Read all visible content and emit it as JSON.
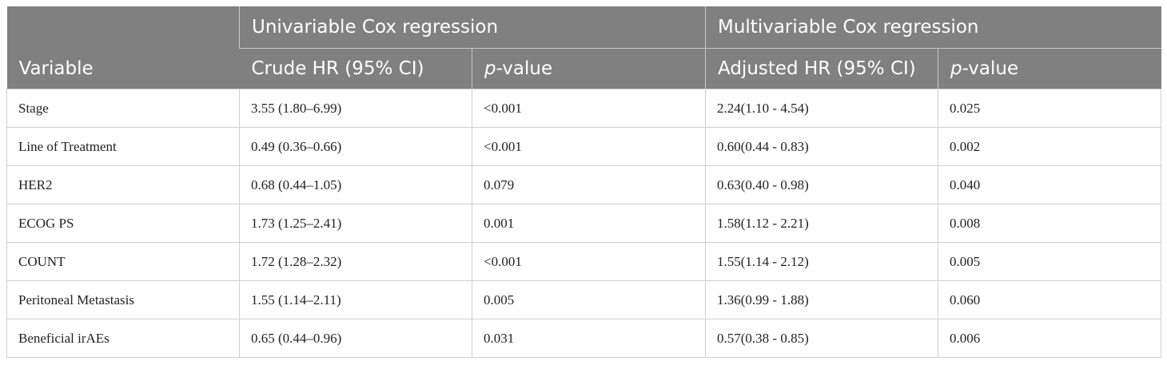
{
  "table": {
    "header": {
      "variable": "Variable",
      "groups": [
        "Univariable Cox regression",
        "Multivariable Cox regression"
      ],
      "columns": [
        "Crude HR (95% CI)",
        "p-value",
        "Adjusted HR (95% CI)",
        "p-value"
      ]
    },
    "rows": [
      [
        "Stage",
        "3.55 (1.80–6.99)",
        "<0.001",
        "2.24(1.10 - 4.54)",
        "0.025"
      ],
      [
        "Line of Treatment",
        "0.49 (0.36–0.66)",
        "<0.001",
        "0.60(0.44 - 0.83)",
        "0.002"
      ],
      [
        "HER2",
        "0.68 (0.44–1.05)",
        "0.079",
        "0.63(0.40 - 0.98)",
        "0.040"
      ],
      [
        "ECOG PS",
        "1.73 (1.25–2.41)",
        "0.001",
        "1.58(1.12 - 2.21)",
        "0.008"
      ],
      [
        "COUNT",
        "1.72 (1.28–2.32)",
        "<0.001",
        "1.55(1.14 - 2.12)",
        "0.005"
      ],
      [
        "Peritoneal Metastasis",
        "1.55 (1.14–2.11)",
        "0.005",
        "1.36(0.99 - 1.88)",
        "0.060"
      ],
      [
        "Beneficial irAEs",
        "0.65 (0.44–0.96)",
        "0.031",
        "0.57(0.38 - 0.85)",
        "0.006"
      ]
    ]
  }
}
